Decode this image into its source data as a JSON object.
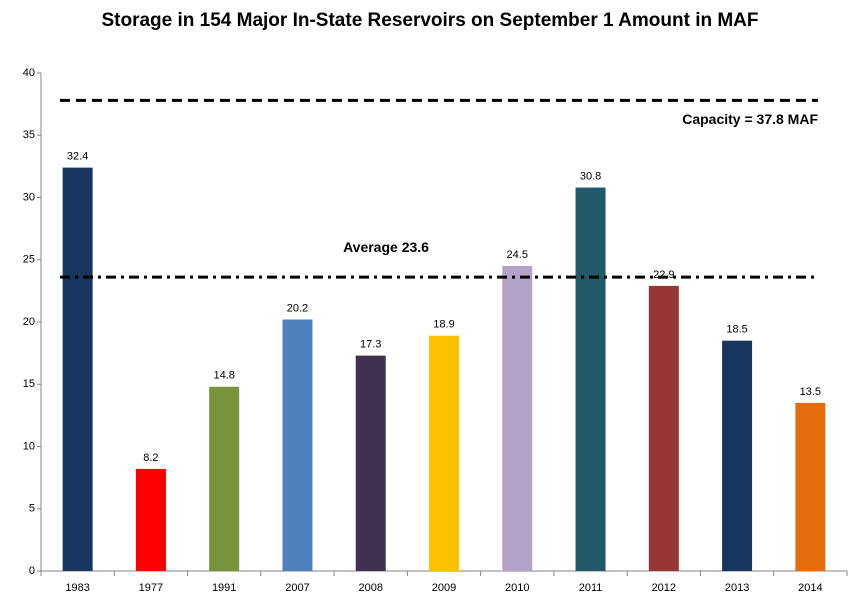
{
  "chart_data": {
    "type": "bar",
    "title": "Storage in 154 Major In-State Reservoirs on September 1 Amount in MAF",
    "categories": [
      "1983",
      "1977",
      "1991",
      "2007",
      "2008",
      "2009",
      "2010",
      "2011",
      "2012",
      "2013",
      "2014"
    ],
    "values": [
      32.4,
      8.2,
      14.8,
      20.2,
      17.3,
      18.9,
      24.5,
      30.8,
      22.9,
      18.5,
      13.5
    ],
    "colors": [
      "#17375e",
      "#ff0000",
      "#77933c",
      "#4f81bd",
      "#403151",
      "#ffc000",
      "#b3a2c7",
      "#215968",
      "#953735",
      "#17375e",
      "#e46c0a"
    ],
    "ylim": [
      0,
      40
    ],
    "yticks": [
      0,
      5,
      10,
      15,
      20,
      25,
      30,
      35,
      40
    ],
    "grid": false,
    "reference_lines": [
      {
        "value": 37.8,
        "label": "Capacity = 37.8 MAF",
        "style": "dashed"
      },
      {
        "value": 23.6,
        "label": "Average 23.6",
        "style": "dashdot"
      }
    ]
  }
}
